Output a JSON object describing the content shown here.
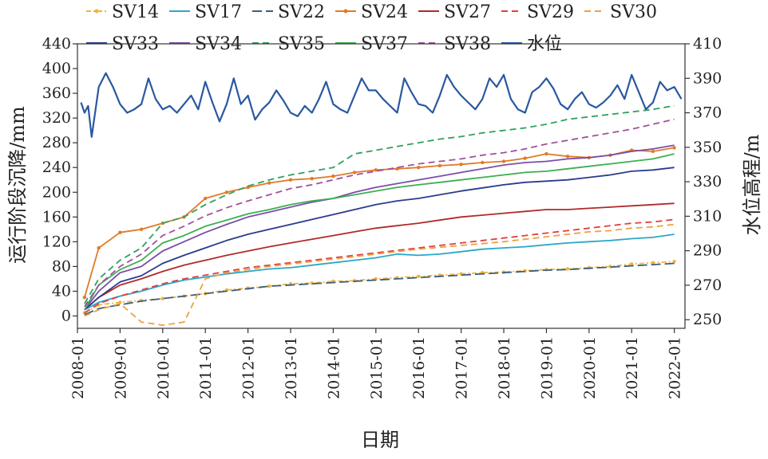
{
  "chart_data": {
    "type": "line",
    "title": "",
    "xlabel": "日期",
    "ylabel": "运行阶段沉降/mm",
    "y2label": "水位高程/m",
    "xlim": [
      "2008-01",
      "2022-04"
    ],
    "ylim": [
      -20,
      440
    ],
    "y2lim": [
      245,
      410
    ],
    "x_ticks": [
      "2008-01",
      "2009-01",
      "2010-01",
      "2011-01",
      "2012-01",
      "2013-01",
      "2014-01",
      "2015-01",
      "2016-01",
      "2017-01",
      "2018-01",
      "2019-01",
      "2020-01",
      "2021-01",
      "2022-01"
    ],
    "y_ticks": [
      0,
      40,
      80,
      120,
      160,
      200,
      240,
      280,
      320,
      360,
      400,
      440
    ],
    "y2_ticks": [
      250,
      270,
      290,
      310,
      330,
      350,
      370,
      390,
      410
    ],
    "grid": false,
    "legend_position": "top",
    "series": [
      {
        "name": "SV14",
        "axis": "left",
        "color": "#f0b43c",
        "style": "dash-dot-marker",
        "x": [
          "2008-03",
          "2008-07",
          "2009-01",
          "2009-07",
          "2010-01",
          "2010-07",
          "2011-01",
          "2011-07",
          "2012-01",
          "2012-07",
          "2013-01",
          "2013-07",
          "2014-01",
          "2014-07",
          "2015-01",
          "2015-07",
          "2016-01",
          "2016-07",
          "2017-01",
          "2017-07",
          "2018-01",
          "2018-07",
          "2019-01",
          "2019-07",
          "2020-01",
          "2020-07",
          "2021-01",
          "2021-07",
          "2022-01"
        ],
        "y": [
          5,
          18,
          22,
          25,
          28,
          32,
          36,
          42,
          45,
          48,
          52,
          53,
          56,
          57,
          60,
          62,
          64,
          66,
          68,
          70,
          71,
          73,
          75,
          76,
          78,
          80,
          84,
          86,
          88
        ]
      },
      {
        "name": "SV17",
        "axis": "left",
        "color": "#2aa7c8",
        "style": "solid",
        "x": [
          "2008-03",
          "2008-07",
          "2009-01",
          "2009-07",
          "2010-01",
          "2010-07",
          "2011-01",
          "2011-07",
          "2012-01",
          "2012-07",
          "2013-01",
          "2013-07",
          "2014-01",
          "2014-07",
          "2015-01",
          "2015-07",
          "2016-01",
          "2016-07",
          "2017-01",
          "2017-07",
          "2018-01",
          "2018-07",
          "2019-01",
          "2019-07",
          "2020-01",
          "2020-07",
          "2021-01",
          "2021-07",
          "2022-01"
        ],
        "y": [
          10,
          22,
          32,
          40,
          50,
          58,
          63,
          68,
          72,
          76,
          78,
          82,
          86,
          90,
          94,
          100,
          98,
          100,
          104,
          108,
          110,
          112,
          115,
          118,
          120,
          122,
          125,
          127,
          132
        ]
      },
      {
        "name": "SV22",
        "axis": "left",
        "color": "#3a5f7d",
        "style": "long-dash",
        "x": [
          "2008-03",
          "2008-07",
          "2009-01",
          "2009-07",
          "2010-01",
          "2010-07",
          "2011-01",
          "2011-07",
          "2012-01",
          "2012-07",
          "2013-01",
          "2013-07",
          "2014-01",
          "2014-07",
          "2015-01",
          "2015-07",
          "2016-01",
          "2016-07",
          "2017-01",
          "2017-07",
          "2018-01",
          "2018-07",
          "2019-01",
          "2019-07",
          "2020-01",
          "2020-07",
          "2021-01",
          "2021-07",
          "2022-01"
        ],
        "y": [
          2,
          12,
          18,
          24,
          28,
          32,
          36,
          40,
          44,
          48,
          50,
          52,
          54,
          56,
          58,
          60,
          62,
          64,
          66,
          68,
          70,
          72,
          74,
          75,
          77,
          79,
          81,
          83,
          85
        ]
      },
      {
        "name": "SV24",
        "axis": "left",
        "color": "#e07b28",
        "style": "solid-marker",
        "x": [
          "2008-03",
          "2008-07",
          "2009-01",
          "2009-07",
          "2010-01",
          "2010-07",
          "2011-01",
          "2011-07",
          "2012-01",
          "2012-07",
          "2013-01",
          "2013-07",
          "2014-01",
          "2014-07",
          "2015-01",
          "2015-07",
          "2016-01",
          "2016-07",
          "2017-01",
          "2017-07",
          "2018-01",
          "2018-07",
          "2019-01",
          "2019-07",
          "2020-01",
          "2020-07",
          "2021-01",
          "2021-07",
          "2022-01"
        ],
        "y": [
          30,
          110,
          135,
          140,
          150,
          160,
          190,
          200,
          208,
          215,
          220,
          222,
          226,
          232,
          236,
          238,
          240,
          243,
          245,
          248,
          250,
          255,
          262,
          258,
          256,
          260,
          268,
          266,
          272
        ]
      },
      {
        "name": "SV27",
        "axis": "left",
        "color": "#b22a2a",
        "style": "solid",
        "x": [
          "2008-03",
          "2008-07",
          "2009-01",
          "2009-07",
          "2010-01",
          "2010-07",
          "2011-01",
          "2011-07",
          "2012-01",
          "2012-07",
          "2013-01",
          "2013-07",
          "2014-01",
          "2014-07",
          "2015-01",
          "2015-07",
          "2016-01",
          "2016-07",
          "2017-01",
          "2017-07",
          "2018-01",
          "2018-07",
          "2019-01",
          "2019-07",
          "2020-01",
          "2020-07",
          "2021-01",
          "2021-07",
          "2022-01"
        ],
        "y": [
          10,
          30,
          50,
          60,
          72,
          82,
          90,
          98,
          105,
          112,
          118,
          124,
          130,
          136,
          142,
          146,
          150,
          155,
          160,
          163,
          166,
          169,
          172,
          172,
          174,
          176,
          178,
          180,
          182
        ]
      },
      {
        "name": "SV29",
        "axis": "left",
        "color": "#e04040",
        "style": "dash",
        "x": [
          "2008-03",
          "2008-07",
          "2009-01",
          "2009-07",
          "2010-01",
          "2010-07",
          "2011-01",
          "2011-07",
          "2012-01",
          "2012-07",
          "2013-01",
          "2013-07",
          "2014-01",
          "2014-07",
          "2015-01",
          "2015-07",
          "2016-01",
          "2016-07",
          "2017-01",
          "2017-07",
          "2018-01",
          "2018-07",
          "2019-01",
          "2019-07",
          "2020-01",
          "2020-07",
          "2021-01",
          "2021-07",
          "2022-01"
        ],
        "y": [
          5,
          20,
          32,
          42,
          52,
          60,
          66,
          72,
          78,
          82,
          86,
          90,
          94,
          98,
          102,
          106,
          110,
          114,
          118,
          122,
          126,
          130,
          134,
          138,
          142,
          146,
          150,
          152,
          156
        ]
      },
      {
        "name": "SV30",
        "axis": "left",
        "color": "#f0a040",
        "style": "dash",
        "x": [
          "2008-03",
          "2008-07",
          "2009-01",
          "2009-07",
          "2010-01",
          "2010-07",
          "2011-01",
          "2011-07",
          "2012-01",
          "2012-07",
          "2013-01",
          "2013-07",
          "2014-01",
          "2014-07",
          "2015-01",
          "2015-07",
          "2016-01",
          "2016-07",
          "2017-01",
          "2017-07",
          "2018-01",
          "2018-07",
          "2019-01",
          "2019-07",
          "2020-01",
          "2020-07",
          "2021-01",
          "2021-07",
          "2022-01"
        ],
        "y": [
          0,
          10,
          20,
          -10,
          -15,
          -10,
          60,
          70,
          75,
          80,
          84,
          88,
          92,
          96,
          100,
          104,
          108,
          111,
          114,
          117,
          120,
          124,
          128,
          132,
          136,
          138,
          142,
          144,
          148
        ]
      },
      {
        "name": "SV33",
        "axis": "left",
        "color": "#2a3c8c",
        "style": "solid",
        "x": [
          "2008-03",
          "2008-07",
          "2009-01",
          "2009-07",
          "2010-01",
          "2010-07",
          "2011-01",
          "2011-07",
          "2012-01",
          "2012-07",
          "2013-01",
          "2013-07",
          "2014-01",
          "2014-07",
          "2015-01",
          "2015-07",
          "2016-01",
          "2016-07",
          "2017-01",
          "2017-07",
          "2018-01",
          "2018-07",
          "2019-01",
          "2019-07",
          "2020-01",
          "2020-07",
          "2021-01",
          "2021-07",
          "2022-01"
        ],
        "y": [
          10,
          30,
          55,
          65,
          85,
          98,
          110,
          122,
          132,
          140,
          148,
          156,
          164,
          172,
          180,
          186,
          190,
          196,
          202,
          207,
          212,
          216,
          218,
          220,
          224,
          228,
          234,
          236,
          240
        ]
      },
      {
        "name": "SV34",
        "axis": "left",
        "color": "#7b4ea8",
        "style": "solid",
        "x": [
          "2008-03",
          "2008-07",
          "2009-01",
          "2009-07",
          "2010-01",
          "2010-07",
          "2011-01",
          "2011-07",
          "2012-01",
          "2012-07",
          "2013-01",
          "2013-07",
          "2014-01",
          "2014-07",
          "2015-01",
          "2015-07",
          "2016-01",
          "2016-07",
          "2017-01",
          "2017-07",
          "2018-01",
          "2018-07",
          "2019-01",
          "2019-07",
          "2020-01",
          "2020-07",
          "2021-01",
          "2021-07",
          "2022-01"
        ],
        "y": [
          10,
          40,
          70,
          80,
          105,
          120,
          135,
          148,
          160,
          168,
          176,
          184,
          190,
          200,
          208,
          214,
          220,
          226,
          232,
          238,
          244,
          248,
          250,
          254,
          256,
          260,
          266,
          270,
          276
        ]
      },
      {
        "name": "SV35",
        "axis": "left",
        "color": "#30a060",
        "style": "dash",
        "x": [
          "2008-03",
          "2008-07",
          "2009-01",
          "2009-07",
          "2010-01",
          "2010-07",
          "2011-01",
          "2011-07",
          "2012-01",
          "2012-07",
          "2013-01",
          "2013-07",
          "2014-01",
          "2014-07",
          "2015-01",
          "2015-07",
          "2016-01",
          "2016-07",
          "2017-01",
          "2017-07",
          "2018-01",
          "2018-07",
          "2019-01",
          "2019-07",
          "2020-01",
          "2020-07",
          "2021-01",
          "2021-07",
          "2022-01"
        ],
        "y": [
          20,
          60,
          90,
          110,
          150,
          160,
          180,
          196,
          210,
          220,
          228,
          234,
          240,
          262,
          268,
          274,
          280,
          286,
          290,
          296,
          300,
          304,
          310,
          318,
          322,
          326,
          330,
          334,
          340
        ]
      },
      {
        "name": "SV37",
        "axis": "left",
        "color": "#3cb050",
        "style": "solid",
        "x": [
          "2008-03",
          "2008-07",
          "2009-01",
          "2009-07",
          "2010-01",
          "2010-07",
          "2011-01",
          "2011-07",
          "2012-01",
          "2012-07",
          "2013-01",
          "2013-07",
          "2014-01",
          "2014-07",
          "2015-01",
          "2015-07",
          "2016-01",
          "2016-07",
          "2017-01",
          "2017-07",
          "2018-01",
          "2018-07",
          "2019-01",
          "2019-07",
          "2020-01",
          "2020-07",
          "2021-01",
          "2021-07",
          "2022-01"
        ],
        "y": [
          10,
          50,
          75,
          90,
          118,
          130,
          145,
          155,
          165,
          172,
          180,
          186,
          190,
          196,
          202,
          208,
          212,
          216,
          220,
          224,
          228,
          232,
          234,
          238,
          242,
          246,
          250,
          254,
          262
        ]
      },
      {
        "name": "SV38",
        "axis": "left",
        "color": "#a050a0",
        "style": "dash",
        "x": [
          "2008-03",
          "2008-07",
          "2009-01",
          "2009-07",
          "2010-01",
          "2010-07",
          "2011-01",
          "2011-07",
          "2012-01",
          "2012-07",
          "2013-01",
          "2013-07",
          "2014-01",
          "2014-07",
          "2015-01",
          "2015-07",
          "2016-01",
          "2016-07",
          "2017-01",
          "2017-07",
          "2018-01",
          "2018-07",
          "2019-01",
          "2019-07",
          "2020-01",
          "2020-07",
          "2021-01",
          "2021-07",
          "2022-01"
        ],
        "y": [
          15,
          50,
          80,
          100,
          130,
          145,
          162,
          175,
          186,
          196,
          206,
          212,
          220,
          228,
          234,
          240,
          246,
          250,
          254,
          260,
          264,
          270,
          278,
          284,
          290,
          296,
          302,
          310,
          318
        ]
      },
      {
        "name": "水位",
        "axis": "right",
        "color": "#2a58a0",
        "style": "solid",
        "x": [
          "2008-02",
          "2008-03",
          "2008-04",
          "2008-05",
          "2008-07",
          "2008-09",
          "2008-11",
          "2009-01",
          "2009-03",
          "2009-05",
          "2009-07",
          "2009-09",
          "2009-11",
          "2010-01",
          "2010-03",
          "2010-05",
          "2010-07",
          "2010-09",
          "2010-11",
          "2011-01",
          "2011-03",
          "2011-05",
          "2011-07",
          "2011-09",
          "2011-11",
          "2012-01",
          "2012-03",
          "2012-05",
          "2012-07",
          "2012-09",
          "2012-11",
          "2013-01",
          "2013-03",
          "2013-05",
          "2013-07",
          "2013-09",
          "2013-11",
          "2014-01",
          "2014-03",
          "2014-05",
          "2014-07",
          "2014-09",
          "2014-11",
          "2015-01",
          "2015-03",
          "2015-05",
          "2015-07",
          "2015-09",
          "2015-11",
          "2016-01",
          "2016-03",
          "2016-05",
          "2016-07",
          "2016-09",
          "2016-11",
          "2017-01",
          "2017-03",
          "2017-05",
          "2017-07",
          "2017-09",
          "2017-11",
          "2018-01",
          "2018-03",
          "2018-05",
          "2018-07",
          "2018-09",
          "2018-11",
          "2019-01",
          "2019-03",
          "2019-05",
          "2019-07",
          "2019-09",
          "2019-11",
          "2020-01",
          "2020-03",
          "2020-05",
          "2020-07",
          "2020-09",
          "2020-11",
          "2021-01",
          "2021-03",
          "2021-05",
          "2021-07",
          "2021-09",
          "2021-11",
          "2022-01",
          "2022-03"
        ],
        "y": [
          376,
          370,
          374,
          356,
          385,
          393,
          385,
          375,
          370,
          372,
          375,
          390,
          378,
          372,
          374,
          370,
          375,
          380,
          372,
          388,
          376,
          365,
          375,
          390,
          375,
          380,
          366,
          372,
          376,
          383,
          377,
          370,
          368,
          374,
          370,
          378,
          388,
          375,
          372,
          370,
          380,
          390,
          383,
          383,
          378,
          374,
          370,
          390,
          382,
          375,
          374,
          370,
          380,
          392,
          385,
          380,
          376,
          372,
          378,
          390,
          385,
          392,
          378,
          372,
          370,
          382,
          385,
          390,
          384,
          375,
          372,
          378,
          382,
          375,
          373,
          376,
          380,
          386,
          378,
          392,
          382,
          372,
          376,
          388,
          383,
          385,
          378
        ]
      }
    ]
  }
}
